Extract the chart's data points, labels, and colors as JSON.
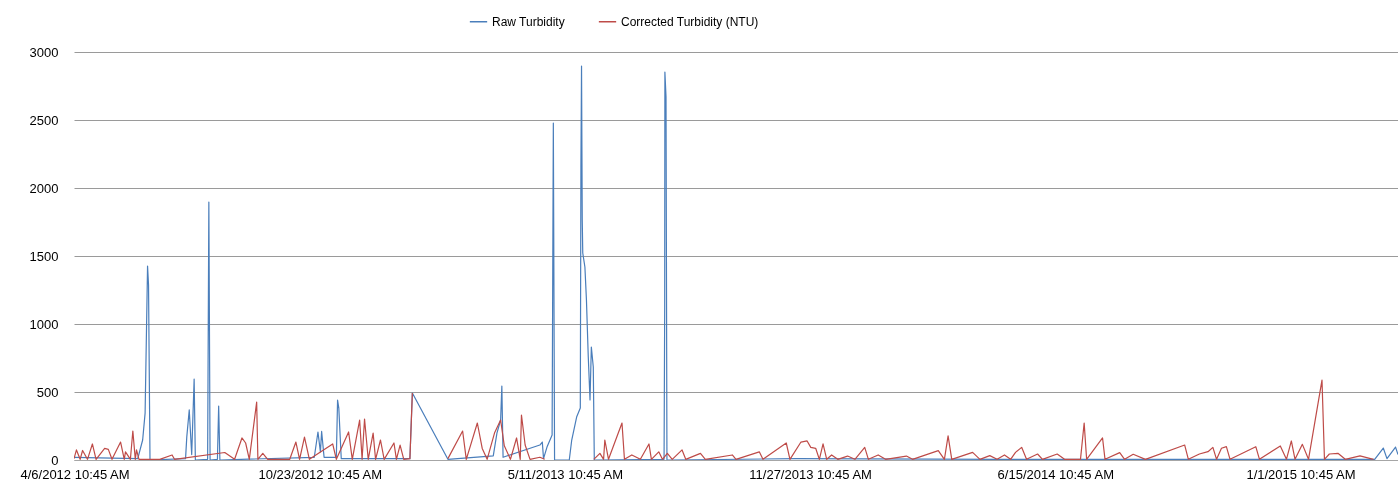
{
  "chart_data": {
    "type": "line",
    "xlim": [
      "2012-04-06",
      "2015-03-22"
    ],
    "xticks": [
      {
        "value": "2012-04-06T10:45",
        "label": "4/6/2012 10:45 AM"
      },
      {
        "value": "2012-10-23T10:45",
        "label": "10/23/2012 10:45 AM"
      },
      {
        "value": "2013-05-11T10:45",
        "label": "5/11/2013 10:45 AM"
      },
      {
        "value": "2013-11-27T10:45",
        "label": "11/27/2013 10:45 AM"
      },
      {
        "value": "2014-06-15T10:45",
        "label": "6/15/2014 10:45 AM"
      },
      {
        "value": "2015-01-01T10:45",
        "label": "1/1/2015 10:45 AM"
      }
    ],
    "ylim": [
      0,
      3000
    ],
    "yticks": [
      0,
      500,
      1000,
      1500,
      2000,
      2500,
      3000
    ],
    "grid": "y",
    "legend": "top",
    "series": [
      {
        "name": "Raw Turbidity",
        "color": "#4a7ebb",
        "x": [
          "2012-04-06",
          "2012-05-28",
          "2012-06-01",
          "2012-06-03",
          "2012-06-05",
          "2012-06-05T19:00",
          "2012-06-07",
          "2012-07-06",
          "2012-07-07",
          "2012-07-09",
          "2012-07-11",
          "2012-07-13",
          "2012-07-14",
          "2012-07-24",
          "2012-07-25",
          "2012-07-26",
          "2012-08-01",
          "2012-08-02",
          "2012-08-03",
          "2012-10-19",
          "2012-10-22",
          "2012-10-24",
          "2012-10-25",
          "2012-10-27",
          "2012-11-06",
          "2012-11-07",
          "2012-11-08",
          "2012-11-10",
          "2013-01-05",
          "2013-01-07",
          "2013-02-05",
          "2013-03-14",
          "2013-03-17",
          "2013-03-20",
          "2013-03-21",
          "2013-03-22",
          "2013-04-21",
          "2013-04-23",
          "2013-04-24",
          "2013-04-27",
          "2013-05-01",
          "2013-05-02",
          "2013-05-03",
          "2013-05-15",
          "2013-05-17",
          "2013-05-21",
          "2013-05-24",
          "2013-05-24T12:00",
          "2013-05-25",
          "2013-05-25T14:00",
          "2013-05-26",
          "2013-05-27T18:00",
          "2013-05-29",
          "2013-05-30T12:00",
          "2013-05-31T22:00",
          "2013-06-02",
          "2013-06-03T14:00",
          "2013-06-04T10:00",
          "2013-07-31T08:00",
          "2013-07-31T20:00",
          "2013-08-01",
          "2013-08-01T22:00",
          "2013-08-02T16:00",
          "2013-11-16",
          "2014-05-01",
          "2015-03-03",
          "2015-03-10",
          "2015-03-13",
          "2015-03-20",
          "2015-03-22"
        ],
        "values": [
          20,
          10,
          147,
          345,
          1426,
          1287,
          0,
          10,
          170,
          368,
          40,
          595,
          0,
          5,
          1897,
          0,
          5,
          397,
          0,
          20,
          206,
          60,
          210,
          20,
          20,
          441,
          382,
          10,
          10,
          492,
          5,
          30,
          198,
          294,
          544,
          20,
          110,
          132,
          10,
          100,
          184,
          2478,
          0,
          0,
          147,
          316,
          382,
          2154,
          2897,
          1765,
          1522,
          1419,
          1176,
          757,
          441,
          831,
          684,
          0,
          5,
          1125,
          2853,
          2669,
          0,
          10,
          5,
          5,
          88,
          10,
          95,
          40
        ]
      },
      {
        "name": "Corrected Turbidity (NTU)",
        "color": "#be4b48",
        "x": [
          "2012-04-06",
          "2012-04-08",
          "2012-04-11",
          "2012-04-13",
          "2012-04-17",
          "2012-04-21",
          "2012-04-24",
          "2012-05-01",
          "2012-05-04",
          "2012-05-07",
          "2012-05-14",
          "2012-05-17",
          "2012-05-18",
          "2012-05-22",
          "2012-05-24",
          "2012-05-26",
          "2012-05-27",
          "2012-05-29",
          "2012-06-15",
          "2012-06-25",
          "2012-06-27",
          "2012-08-07",
          "2012-08-15",
          "2012-08-21",
          "2012-08-24",
          "2012-08-27",
          "2012-09-02",
          "2012-09-03",
          "2012-09-07",
          "2012-09-11",
          "2012-09-29",
          "2012-10-04",
          "2012-10-07",
          "2012-10-11",
          "2012-10-15",
          "2012-11-03",
          "2012-11-06",
          "2012-11-16",
          "2012-11-19",
          "2012-11-25",
          "2012-11-27",
          "2012-11-29",
          "2012-12-02",
          "2012-12-06",
          "2012-12-08",
          "2012-12-12",
          "2012-12-15",
          "2012-12-23",
          "2012-12-25",
          "2012-12-28",
          "2012-12-31",
          "2013-01-05",
          "2013-01-07",
          "2013-01-20",
          "2013-02-05",
          "2013-02-17",
          "2013-02-20",
          "2013-03-01",
          "2013-03-05",
          "2013-03-09",
          "2013-03-15",
          "2013-03-20",
          "2013-03-23",
          "2013-03-28",
          "2013-04-02",
          "2013-04-05",
          "2013-04-06",
          "2013-04-09",
          "2013-04-13",
          "2013-04-21",
          "2013-04-25",
          "2013-05-10",
          "2013-06-04",
          "2013-06-09",
          "2013-06-12",
          "2013-06-13",
          "2013-06-16",
          "2013-06-27",
          "2013-06-29",
          "2013-07-05",
          "2013-07-12",
          "2013-07-19",
          "2013-07-21",
          "2013-07-27",
          "2013-07-30",
          "2013-08-03",
          "2013-08-07",
          "2013-08-15",
          "2013-08-18",
          "2013-08-30",
          "2013-09-03",
          "2013-09-25",
          "2013-09-28",
          "2013-10-17",
          "2013-10-20",
          "2013-11-08",
          "2013-11-11",
          "2013-11-20",
          "2013-11-25",
          "2013-11-28",
          "2013-12-02",
          "2013-12-05",
          "2013-12-08",
          "2013-12-11",
          "2013-12-15",
          "2013-12-20",
          "2013-12-28",
          "2014-01-03",
          "2014-01-11",
          "2014-01-14",
          "2014-01-22",
          "2014-01-28",
          "2014-02-14",
          "2014-02-19",
          "2014-03-12",
          "2014-03-17",
          "2014-03-20",
          "2014-03-23",
          "2014-04-09",
          "2014-04-15",
          "2014-04-23",
          "2014-04-29",
          "2014-05-05",
          "2014-05-10",
          "2014-05-14",
          "2014-05-19",
          "2014-05-23",
          "2014-06-01",
          "2014-06-05",
          "2014-06-17",
          "2014-06-23",
          "2014-07-06",
          "2014-07-09",
          "2014-07-11",
          "2014-07-24",
          "2014-07-26",
          "2014-08-07",
          "2014-08-11",
          "2014-08-18",
          "2014-08-28",
          "2014-09-29",
          "2014-10-02",
          "2014-10-11",
          "2014-10-18",
          "2014-10-22",
          "2014-10-25",
          "2014-10-29",
          "2014-11-02",
          "2014-11-05",
          "2014-11-26",
          "2014-11-29",
          "2014-12-16",
          "2014-12-21",
          "2014-12-25",
          "2014-12-28",
          "2015-01-03",
          "2015-01-08",
          "2015-01-19",
          "2015-01-21",
          "2015-01-25",
          "2015-02-01",
          "2015-02-07",
          "2015-02-19",
          "2015-03-02"
        ],
        "values": [
          10,
          74,
          5,
          70,
          5,
          118,
          5,
          85,
          78,
          5,
          132,
          5,
          60,
          5,
          213,
          5,
          74,
          5,
          5,
          37,
          5,
          55,
          5,
          162,
          125,
          5,
          426,
          5,
          49,
          5,
          5,
          132,
          5,
          169,
          5,
          118,
          5,
          206,
          5,
          294,
          5,
          301,
          5,
          198,
          5,
          147,
          5,
          125,
          5,
          110,
          5,
          10,
          492,
          null,
          10,
          213,
          5,
          272,
          85,
          5,
          198,
          294,
          104,
          5,
          162,
          5,
          331,
          110,
          5,
          20,
          5,
          null,
          5,
          49,
          5,
          147,
          5,
          272,
          5,
          37,
          5,
          118,
          5,
          60,
          5,
          49,
          5,
          74,
          5,
          49,
          5,
          37,
          5,
          60,
          5,
          125,
          5,
          132,
          140,
          93,
          86,
          5,
          118,
          5,
          37,
          5,
          29,
          5,
          93,
          5,
          37,
          5,
          29,
          5,
          69,
          5,
          178,
          5,
          56,
          5,
          32,
          5,
          37,
          5,
          56,
          93,
          5,
          44,
          5,
          44,
          5,
          5,
          272,
          5,
          162,
          5,
          54,
          5,
          42,
          5,
          110,
          5,
          44,
          61,
          93,
          5,
          86,
          98,
          5,
          98,
          5,
          103,
          5,
          140,
          5,
          115,
          5,
          588,
          5,
          44,
          49,
          5,
          30,
          5
        ]
      }
    ]
  }
}
